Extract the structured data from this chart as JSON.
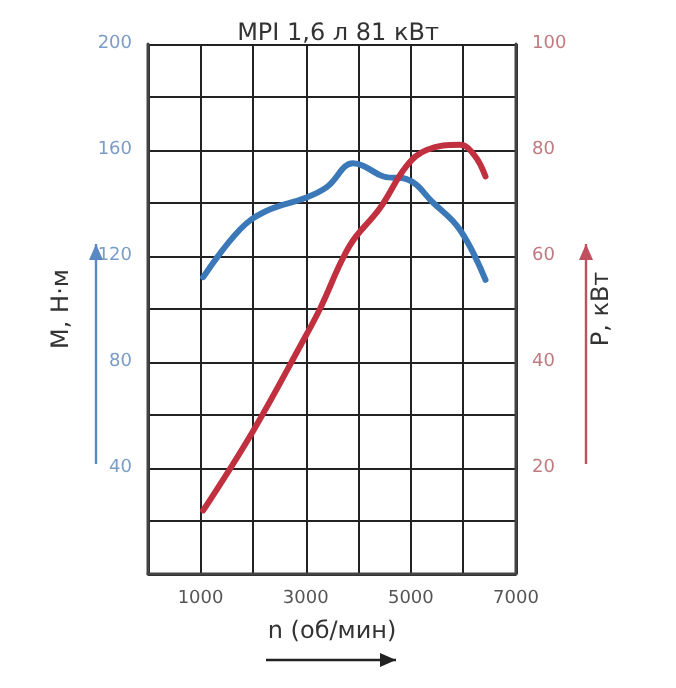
{
  "chart_data": {
    "type": "line",
    "title": "MPI 1,6 л 81 кВт",
    "xlabel": "n (об/мин)",
    "ylabel": "M, Н·м",
    "y2label": "P, кВт",
    "xlim": [
      0,
      7000
    ],
    "xticks": [
      {
        "value": 0,
        "label": null
      },
      1000,
      {
        "value": 2000,
        "label": null
      },
      3000,
      {
        "value": 4000,
        "label": null
      },
      5000,
      {
        "value": 6000,
        "label": null
      },
      7000
    ],
    "ylim": [
      0,
      200
    ],
    "yticks": [
      {
        "value": 0,
        "label": null
      },
      {
        "value": 20,
        "label": null
      },
      40,
      {
        "value": 60,
        "label": null
      },
      80,
      {
        "value": 100,
        "label": null
      },
      120,
      {
        "value": 140,
        "label": null
      },
      160,
      {
        "value": 180,
        "label": null
      },
      200
    ],
    "y2lim": [
      0,
      100
    ],
    "y2ticks": [
      20,
      40,
      60,
      80,
      100
    ],
    "grid": true,
    "marker": "none",
    "line_style": "solid",
    "series": [
      {
        "color": "#3a78b8",
        "x": [
          1050,
          1750,
          2250,
          3000,
          3400,
          3900,
          4100,
          4480,
          4920,
          5430,
          5930,
          6420
        ],
        "values": [
          112,
          130,
          137,
          142,
          146,
          155,
          154,
          150,
          149,
          140,
          130,
          111
        ]
      },
      {
        "color": "#c0303f",
        "axis": "y2",
        "x": [
          1050,
          2000,
          2950,
          3270,
          3840,
          4410,
          4920,
          5300,
          5930,
          6210,
          6420
        ],
        "values": [
          12,
          27,
          44,
          50,
          62,
          69,
          77,
          80,
          81,
          79,
          75
        ]
      }
    ]
  }
}
